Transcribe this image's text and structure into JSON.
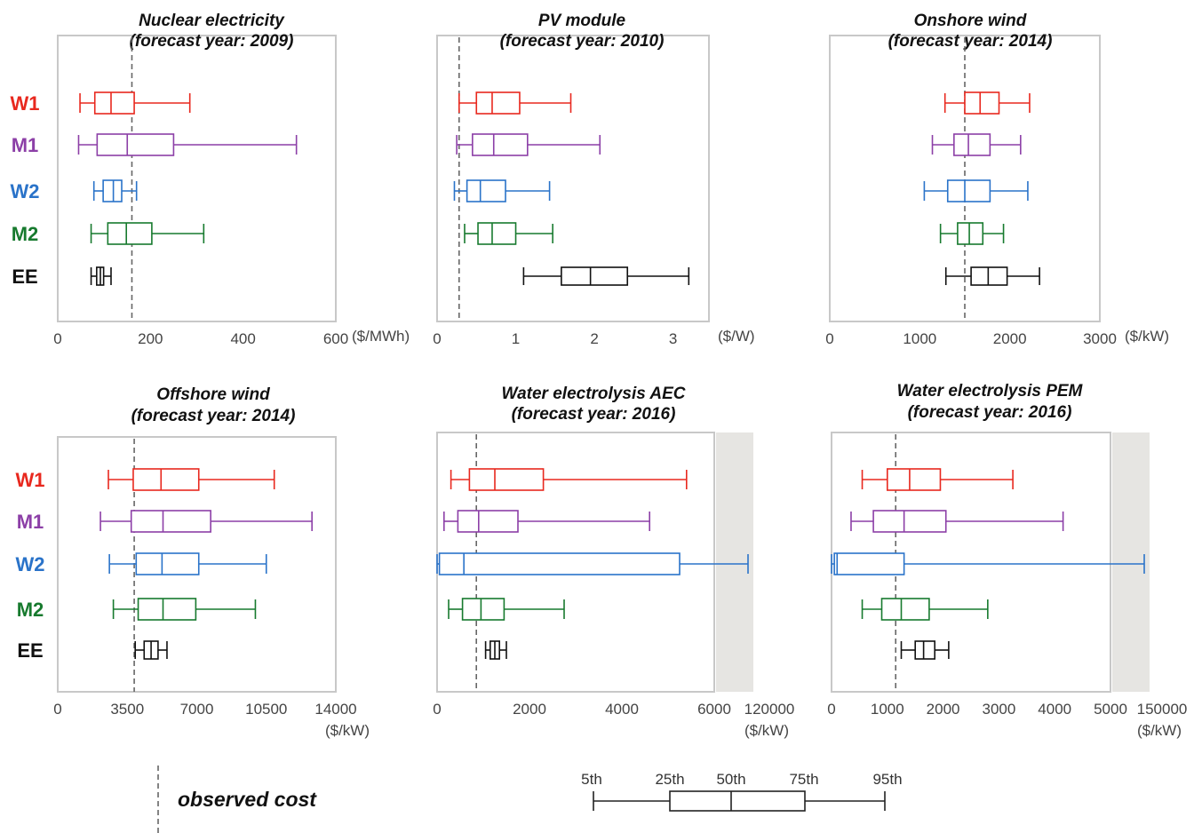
{
  "colors": {
    "W1": "#e8281e",
    "M1": "#8c3fa7",
    "W2": "#2a73c9",
    "M2": "#177a2e",
    "EE": "#111111",
    "frame": "#c8c8c8",
    "shade": "#e6e5e2",
    "observed": "#666666"
  },
  "chart_data": [
    {
      "type": "box",
      "title_line1": "Nuclear electricity",
      "title_line2": "(forecast year: 2009)",
      "unit": "($/MWh)",
      "xlim": [
        0,
        600
      ],
      "ticks": [
        0,
        200,
        400,
        600
      ],
      "tick_labels": [
        "0",
        "200",
        "400",
        "600"
      ],
      "observed": 160,
      "row_labels": [
        "W1",
        "M1",
        "W2",
        "M2",
        "EE"
      ],
      "series": [
        {
          "name": "W1",
          "p5": 48,
          "p25": 80,
          "p50": 115,
          "p75": 165,
          "p95": 285
        },
        {
          "name": "M1",
          "p5": 45,
          "p25": 85,
          "p50": 150,
          "p75": 250,
          "p95": 515
        },
        {
          "name": "W2",
          "p5": 78,
          "p25": 98,
          "p50": 120,
          "p75": 138,
          "p95": 170
        },
        {
          "name": "M2",
          "p5": 72,
          "p25": 108,
          "p50": 148,
          "p75": 203,
          "p95": 315
        },
        {
          "name": "EE",
          "p5": 72,
          "p25": 84,
          "p50": 92,
          "p75": 99,
          "p95": 115
        }
      ]
    },
    {
      "type": "box",
      "title_line1": "PV module",
      "title_line2": "(forecast year: 2010)",
      "unit": "($/W)",
      "xlim": [
        0,
        3.4
      ],
      "ticks": [
        0,
        1,
        2,
        3
      ],
      "tick_labels": [
        "0",
        "1",
        "2",
        "3"
      ],
      "observed": 0.28,
      "row_labels": [],
      "series": [
        {
          "name": "W1",
          "p5": 0.28,
          "p25": 0.5,
          "p50": 0.7,
          "p75": 1.05,
          "p95": 1.7
        },
        {
          "name": "M1",
          "p5": 0.25,
          "p25": 0.45,
          "p50": 0.72,
          "p75": 1.15,
          "p95": 2.07
        },
        {
          "name": "W2",
          "p5": 0.22,
          "p25": 0.38,
          "p50": 0.55,
          "p75": 0.87,
          "p95": 1.43
        },
        {
          "name": "M2",
          "p5": 0.35,
          "p25": 0.52,
          "p50": 0.7,
          "p75": 1.0,
          "p95": 1.47
        },
        {
          "name": "EE",
          "p5": 1.1,
          "p25": 1.58,
          "p50": 1.95,
          "p75": 2.42,
          "p95": 3.2
        }
      ]
    },
    {
      "type": "box",
      "title_line1": "Onshore wind",
      "title_line2": "(forecast year: 2014)",
      "unit": "($/kW)",
      "xlim": [
        0,
        3000
      ],
      "ticks": [
        0,
        1000,
        2000,
        3000
      ],
      "tick_labels": [
        "0",
        "1000",
        "2000",
        "3000"
      ],
      "observed": 1500,
      "row_labels": [],
      "series": [
        {
          "name": "W1",
          "p5": 1280,
          "p25": 1500,
          "p50": 1670,
          "p75": 1880,
          "p95": 2220
        },
        {
          "name": "M1",
          "p5": 1140,
          "p25": 1380,
          "p50": 1540,
          "p75": 1780,
          "p95": 2120
        },
        {
          "name": "W2",
          "p5": 1050,
          "p25": 1310,
          "p50": 1500,
          "p75": 1780,
          "p95": 2200
        },
        {
          "name": "M2",
          "p5": 1230,
          "p25": 1420,
          "p50": 1550,
          "p75": 1700,
          "p95": 1930
        },
        {
          "name": "EE",
          "p5": 1290,
          "p25": 1570,
          "p50": 1760,
          "p75": 1970,
          "p95": 2330
        }
      ]
    },
    {
      "type": "box",
      "title_line1": "Offshore wind",
      "title_line2": "(forecast year: 2014)",
      "unit": "($/kW)",
      "xlim": [
        0,
        14000
      ],
      "ticks": [
        0,
        3500,
        7000,
        10500,
        14000
      ],
      "tick_labels": [
        "0",
        "3500",
        "7000",
        "10500",
        "14000"
      ],
      "observed": 3850,
      "row_labels": [
        "W1",
        "M1",
        "W2",
        "M2",
        "EE"
      ],
      "series": [
        {
          "name": "W1",
          "p5": 2550,
          "p25": 3800,
          "p50": 5200,
          "p75": 7100,
          "p95": 10900
        },
        {
          "name": "M1",
          "p5": 2150,
          "p25": 3700,
          "p50": 5300,
          "p75": 7700,
          "p95": 12800
        },
        {
          "name": "W2",
          "p5": 2600,
          "p25": 3950,
          "p50": 5250,
          "p75": 7100,
          "p95": 10500
        },
        {
          "name": "M2",
          "p5": 2800,
          "p25": 4050,
          "p50": 5300,
          "p75": 6950,
          "p95": 9950
        },
        {
          "name": "EE",
          "p5": 3900,
          "p25": 4350,
          "p50": 4700,
          "p75": 5050,
          "p95": 5500
        }
      ]
    },
    {
      "type": "box",
      "title_line1": "Water electrolysis AEC",
      "title_line2": "(forecast year: 2016)",
      "unit": "($/kW)",
      "xlim": [
        0,
        6000
      ],
      "ticks": [
        0,
        2000,
        4000,
        6000
      ],
      "tick_labels": [
        "0",
        "2000",
        "4000",
        "6000"
      ],
      "extended_tick_label": "120000",
      "observed": 850,
      "row_labels": [],
      "series": [
        {
          "name": "W1",
          "p5": 300,
          "p25": 700,
          "p50": 1250,
          "p75": 2300,
          "p95": 5400
        },
        {
          "name": "M1",
          "p5": 150,
          "p25": 450,
          "p50": 900,
          "p75": 1750,
          "p95": 4600
        },
        {
          "name": "W2",
          "p5": 0,
          "p25": 50,
          "p50": 580,
          "p75": 5250,
          "p95": 120000
        },
        {
          "name": "M2",
          "p5": 250,
          "p25": 550,
          "p50": 950,
          "p75": 1450,
          "p95": 2750
        },
        {
          "name": "EE",
          "p5": 1050,
          "p25": 1150,
          "p50": 1250,
          "p75": 1350,
          "p95": 1500
        }
      ]
    },
    {
      "type": "box",
      "title_line1": "Water electrolysis PEM",
      "title_line2": "(forecast year: 2016)",
      "unit": "($/kW)",
      "xlim": [
        0,
        5000
      ],
      "ticks": [
        0,
        1000,
        2000,
        3000,
        4000,
        5000
      ],
      "tick_labels": [
        "0",
        "1000",
        "2000",
        "3000",
        "4000",
        "5000"
      ],
      "extended_tick_label": "150000",
      "observed": 1150,
      "row_labels": [],
      "series": [
        {
          "name": "W1",
          "p5": 550,
          "p25": 1000,
          "p50": 1400,
          "p75": 1950,
          "p95": 3250
        },
        {
          "name": "M1",
          "p5": 350,
          "p25": 750,
          "p50": 1300,
          "p75": 2050,
          "p95": 4150
        },
        {
          "name": "W2",
          "p5": 0,
          "p25": 50,
          "p50": 100,
          "p75": 1300,
          "p95": 150000
        },
        {
          "name": "M2",
          "p5": 550,
          "p25": 900,
          "p50": 1250,
          "p75": 1750,
          "p95": 2800
        },
        {
          "name": "EE",
          "p5": 1250,
          "p25": 1500,
          "p50": 1650,
          "p75": 1850,
          "p95": 2100
        }
      ]
    }
  ],
  "legend": {
    "observed_label": "observed cost",
    "percentile_labels": [
      "5th",
      "25th",
      "50th",
      "75th",
      "95th"
    ]
  }
}
